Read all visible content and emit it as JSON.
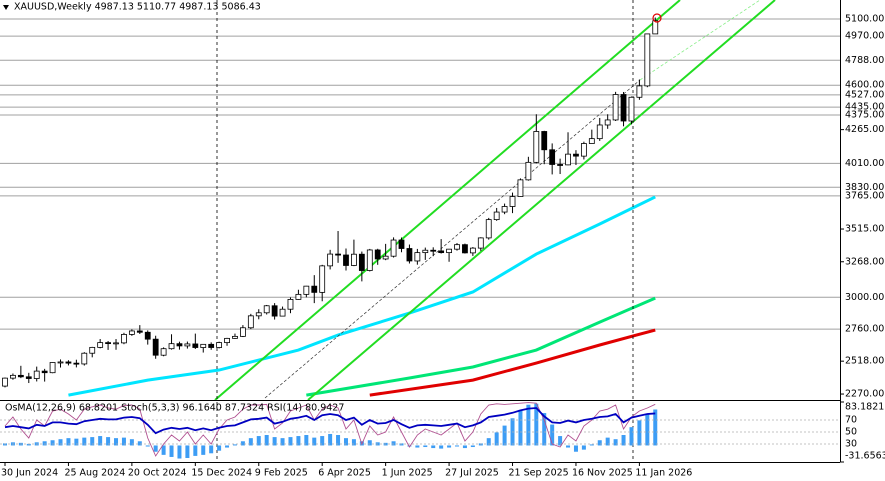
{
  "chart_data": {
    "type": "candlestick",
    "title": "XAUUSD,Weekly  4987.13 5110.77 4987.13 5086.43",
    "categories": [
      "30 Jun 2024",
      null,
      null,
      null,
      null,
      null,
      null,
      null,
      "25 Aug 2024",
      null,
      null,
      null,
      null,
      null,
      null,
      null,
      "20 Oct 2024",
      null,
      null,
      null,
      null,
      null,
      null,
      null,
      "15 Dec 2024",
      null,
      null,
      null,
      null,
      null,
      null,
      null,
      "9 Feb 2025",
      null,
      null,
      null,
      null,
      null,
      null,
      null,
      "6 Apr 2025",
      null,
      null,
      null,
      null,
      null,
      null,
      null,
      "1 Jun 2025",
      null,
      null,
      null,
      null,
      null,
      null,
      null,
      "27 Jul 2025",
      null,
      null,
      null,
      null,
      null,
      null,
      null,
      "21 Sep 2025",
      null,
      null,
      null,
      null,
      null,
      null,
      null,
      "16 Nov 2025",
      null,
      null,
      null,
      null,
      null,
      null,
      null,
      "11 Jan 2026",
      null,
      null
    ],
    "candles": [
      [
        2330,
        2395,
        2320,
        2390
      ],
      [
        2390,
        2425,
        2378,
        2411
      ],
      [
        2411,
        2483,
        2390,
        2400
      ],
      [
        2400,
        2430,
        2353,
        2387
      ],
      [
        2387,
        2477,
        2365,
        2443
      ],
      [
        2443,
        2460,
        2364,
        2431
      ],
      [
        2431,
        2510,
        2427,
        2508
      ],
      [
        2508,
        2531,
        2470,
        2512
      ],
      [
        2512,
        2525,
        2486,
        2503
      ],
      [
        2503,
        2529,
        2471,
        2497
      ],
      [
        2497,
        2586,
        2485,
        2578
      ],
      [
        2578,
        2626,
        2547,
        2622
      ],
      [
        2622,
        2685,
        2615,
        2658
      ],
      [
        2658,
        2670,
        2603,
        2653
      ],
      [
        2653,
        2685,
        2604,
        2656
      ],
      [
        2656,
        2732,
        2646,
        2720
      ],
      [
        2720,
        2758,
        2709,
        2746
      ],
      [
        2746,
        2790,
        2723,
        2736
      ],
      [
        2736,
        2750,
        2643,
        2684
      ],
      [
        2684,
        2710,
        2536,
        2563
      ],
      [
        2563,
        2622,
        2555,
        2612
      ],
      [
        2612,
        2721,
        2605,
        2650
      ],
      [
        2650,
        2665,
        2605,
        2633
      ],
      [
        2633,
        2666,
        2613,
        2648
      ],
      [
        2648,
        2726,
        2610,
        2621
      ],
      [
        2621,
        2647,
        2583,
        2645
      ],
      [
        2645,
        2660,
        2604,
        2621
      ],
      [
        2621,
        2665,
        2614,
        2658
      ],
      [
        2658,
        2694,
        2634,
        2690
      ],
      [
        2690,
        2726,
        2687,
        2705
      ],
      [
        2705,
        2790,
        2700,
        2770
      ],
      [
        2770,
        2875,
        2760,
        2860
      ],
      [
        2860,
        2910,
        2834,
        2883
      ],
      [
        2883,
        2942,
        2870,
        2936
      ],
      [
        2936,
        2956,
        2832,
        2858
      ],
      [
        2858,
        2930,
        2857,
        2910
      ],
      [
        2910,
        2999,
        2880,
        2984
      ],
      [
        2984,
        3057,
        2982,
        3022
      ],
      [
        3022,
        3086,
        3000,
        3084
      ],
      [
        3084,
        3167,
        2956,
        3037
      ],
      [
        3037,
        3245,
        2970,
        3237
      ],
      [
        3237,
        3358,
        3210,
        3326
      ],
      [
        3326,
        3500,
        3260,
        3319
      ],
      [
        3319,
        3368,
        3202,
        3240
      ],
      [
        3240,
        3435,
        3235,
        3325
      ],
      [
        3325,
        3345,
        3120,
        3202
      ],
      [
        3202,
        3365,
        3195,
        3357
      ],
      [
        3357,
        3366,
        3245,
        3289
      ],
      [
        3289,
        3403,
        3280,
        3310
      ],
      [
        3310,
        3452,
        3300,
        3432
      ],
      [
        3432,
        3451,
        3340,
        3368
      ],
      [
        3368,
        3398,
        3255,
        3274
      ],
      [
        3274,
        3365,
        3246,
        3337
      ],
      [
        3337,
        3375,
        3282,
        3355
      ],
      [
        3355,
        3377,
        3310,
        3350
      ],
      [
        3350,
        3439,
        3330,
        3337
      ],
      [
        3337,
        3365,
        3268,
        3363
      ],
      [
        3363,
        3409,
        3352,
        3397
      ],
      [
        3397,
        3405,
        3330,
        3335
      ],
      [
        3335,
        3379,
        3312,
        3371
      ],
      [
        3371,
        3453,
        3350,
        3448
      ],
      [
        3448,
        3599,
        3435,
        3586
      ],
      [
        3586,
        3674,
        3577,
        3643
      ],
      [
        3643,
        3707,
        3627,
        3685
      ],
      [
        3685,
        3790,
        3635,
        3760
      ],
      [
        3760,
        3897,
        3758,
        3886
      ],
      [
        3886,
        4060,
        3880,
        4018
      ],
      [
        4018,
        4381,
        4011,
        4251
      ],
      [
        4251,
        4256,
        4004,
        4113
      ],
      [
        4113,
        4161,
        3927,
        4002
      ],
      [
        4002,
        4046,
        3930,
        3999
      ],
      [
        3999,
        4245,
        3996,
        4080
      ],
      [
        4080,
        4110,
        3998,
        4065
      ],
      [
        4065,
        4174,
        4040,
        4160
      ],
      [
        4160,
        4265,
        4160,
        4197
      ],
      [
        4197,
        4353,
        4180,
        4300
      ],
      [
        4300,
        4381,
        4271,
        4338
      ],
      [
        4338,
        4550,
        4330,
        4530
      ],
      [
        4530,
        4549,
        4290,
        4330
      ],
      [
        4330,
        4515,
        4305,
        4509
      ],
      [
        4509,
        4643,
        4490,
        4595
      ],
      [
        4595,
        4990,
        4585,
        4987.13
      ],
      [
        4987.13,
        5110.77,
        4987.13,
        5086.43
      ]
    ],
    "up_color": "#ffffff",
    "down_color": "#000000",
    "ylim": [
      2225,
      5243
    ],
    "yticks": [
      {
        "value": 2270,
        "label": "2270.00"
      },
      {
        "value": 2518,
        "label": "2518.00"
      },
      {
        "value": 3268,
        "label": "3268.00"
      },
      {
        "value": 3515,
        "label": "3515.00"
      },
      {
        "value": 4265,
        "label": "4265.00"
      }
    ],
    "levels": [
      {
        "value": 5100,
        "label": "5100.00"
      },
      {
        "value": 4970,
        "label": "4970.00"
      },
      {
        "value": 4788,
        "label": "4788.00"
      },
      {
        "value": 4600,
        "label": "4600.00"
      },
      {
        "value": 4527,
        "label": "4527.00"
      },
      {
        "value": 4435,
        "label": "4435.00"
      },
      {
        "value": 4375,
        "label": "4375.00"
      },
      {
        "value": 4010,
        "label": "4010.00"
      },
      {
        "value": 3830,
        "label": "3830.00"
      },
      {
        "value": 3765,
        "label": "3765.00"
      },
      {
        "value": 3000,
        "label": "3000.00"
      },
      {
        "value": 2760,
        "label": "2760.00"
      }
    ],
    "level_color": "#a0a0a0",
    "moving_averages": [
      {
        "color": "#00e5ff",
        "x": [
          8,
          18,
          27,
          37,
          42,
          51,
          59,
          67,
          75,
          82
        ],
        "values": [
          2262,
          2375,
          2451,
          2602,
          2715,
          2881,
          3040,
          3326,
          3553,
          3757
        ]
      },
      {
        "color": "#00e676",
        "x": [
          38,
          51,
          59,
          67,
          75,
          82
        ],
        "values": [
          2262,
          2391,
          2474,
          2602,
          2813,
          2994
        ]
      },
      {
        "color": "#e00000",
        "x": [
          46,
          59,
          67,
          75,
          82
        ],
        "values": [
          2262,
          2375,
          2504,
          2640,
          2753
        ]
      }
    ],
    "indicator": {
      "label": "OsMA(12,26,9) 68.8201 Stoch(5,3,3) 96.1640 87.7324 RSI(14) 80.9427",
      "ylim": [
        0,
        100
      ],
      "yticks": [
        70,
        50,
        30
      ],
      "y2lim": [
        -31.6563,
        83.1821
      ],
      "y2ticks": [
        {
          "value": 83.1821,
          "label": "83.1821"
        },
        {
          "value": -31.6563,
          "label": "-31.6563"
        }
      ],
      "osma": {
        "color": "#3d9df5",
        "values": [
          4,
          6,
          5,
          3,
          6,
          8,
          10,
          12,
          14,
          13,
          15,
          16,
          18,
          16,
          14,
          15,
          12,
          8,
          -2,
          -12,
          -18,
          -22,
          -25,
          -24,
          -20,
          -18,
          -15,
          -10,
          -4,
          2,
          8,
          14,
          18,
          20,
          16,
          14,
          16,
          18,
          20,
          15,
          18,
          22,
          20,
          14,
          12,
          8,
          10,
          6,
          5,
          8,
          4,
          -2,
          -4,
          -3,
          -5,
          -6,
          -4,
          -2,
          -5,
          -3,
          4,
          14,
          25,
          38,
          52,
          68,
          78,
          80,
          62,
          40,
          18,
          -4,
          -12,
          -8,
          2,
          10,
          15,
          12,
          20,
          35,
          48,
          60,
          68.8201
        ]
      },
      "rsi": {
        "color": "#0000c0",
        "values": [
          58,
          60,
          58,
          56,
          62,
          60,
          66,
          66,
          64,
          63,
          68,
          70,
          72,
          71,
          71,
          74,
          75,
          73,
          62,
          48,
          54,
          57,
          55,
          57,
          53,
          56,
          53,
          57,
          60,
          61,
          66,
          71,
          72,
          74,
          64,
          67,
          72,
          74,
          77,
          70,
          78,
          80,
          78,
          70,
          74,
          62,
          70,
          64,
          65,
          70,
          63,
          57,
          61,
          62,
          61,
          60,
          62,
          64,
          58,
          61,
          66,
          75,
          77,
          79,
          82,
          86,
          89,
          90,
          76,
          66,
          65,
          69,
          66,
          70,
          72,
          75,
          76,
          80,
          66,
          74,
          77,
          80,
          80.9427
        ]
      },
      "stoch": {
        "color": "#b05090",
        "values": [
          60,
          75,
          55,
          40,
          70,
          60,
          85,
          88,
          80,
          70,
          88,
          92,
          95,
          90,
          88,
          94,
          95,
          88,
          40,
          10,
          30,
          45,
          35,
          50,
          30,
          45,
          30,
          55,
          70,
          75,
          88,
          95,
          95,
          96,
          55,
          65,
          85,
          90,
          95,
          70,
          88,
          95,
          90,
          55,
          70,
          30,
          60,
          45,
          50,
          75,
          50,
          25,
          45,
          55,
          50,
          45,
          55,
          65,
          35,
          50,
          80,
          95,
          97,
          96,
          97,
          98,
          99,
          98,
          70,
          30,
          25,
          45,
          35,
          60,
          70,
          85,
          88,
          95,
          55,
          75,
          85,
          90,
          96.164
        ]
      }
    }
  }
}
